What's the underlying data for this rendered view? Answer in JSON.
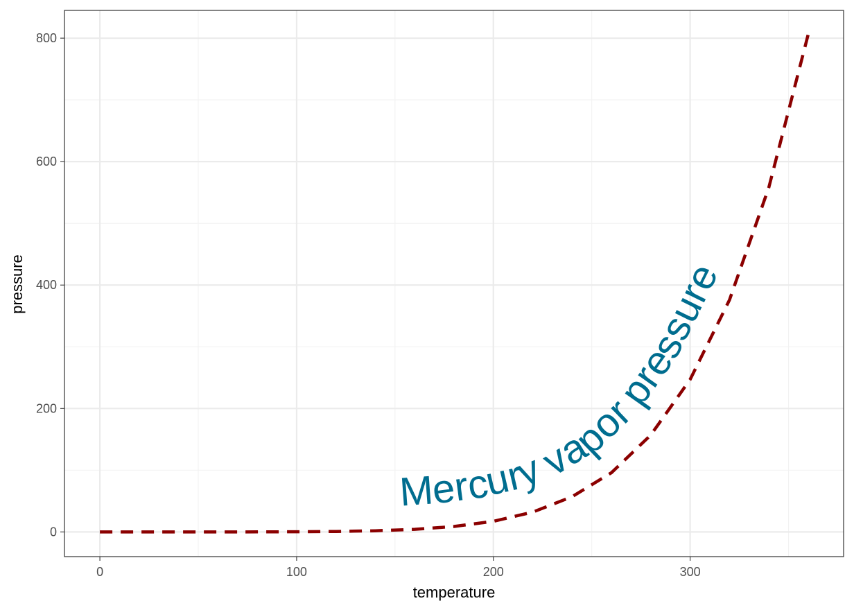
{
  "chart_data": {
    "type": "line",
    "xlabel": "temperature",
    "ylabel": "pressure",
    "xlim": [
      -18,
      378
    ],
    "ylim": [
      -40,
      845
    ],
    "x_ticks": [
      0,
      100,
      200,
      300
    ],
    "x_minor": [
      50,
      150,
      250,
      350
    ],
    "y_ticks": [
      0,
      200,
      400,
      600,
      800
    ],
    "y_minor": [
      100,
      300,
      500,
      700
    ],
    "grid": true,
    "series": [
      {
        "line_color": "#8b0000",
        "line_style": "dashed",
        "x": [
          0,
          20,
          40,
          60,
          80,
          100,
          120,
          140,
          160,
          180,
          200,
          220,
          240,
          260,
          280,
          300,
          320,
          340,
          360
        ],
        "y": [
          0.0002,
          0.0012,
          0.006,
          0.03,
          0.09,
          0.27,
          0.75,
          1.85,
          4.2,
          8.8,
          17.3,
          32.1,
          57,
          96,
          157,
          247,
          376,
          558,
          806
        ]
      }
    ],
    "annotation": {
      "text": "Mercury vapor pressure",
      "color": "#006d8f"
    }
  }
}
